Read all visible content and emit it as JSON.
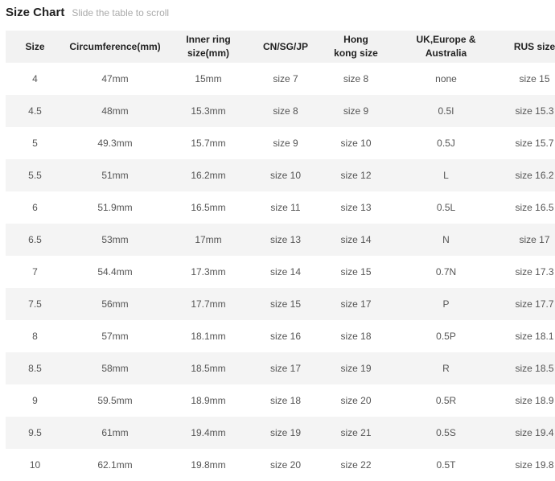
{
  "title": "Size Chart",
  "subtitle": "Slide the table to scroll",
  "headers": [
    "Size",
    "Circumference(mm)",
    "Inner ring size(mm)",
    "CN/SG/JP",
    "Hong kong size",
    "UK,Europe & Australia",
    "RUS size"
  ],
  "rows": [
    [
      "4",
      "47mm",
      "15mm",
      "size 7",
      "size 8",
      "none",
      "size 15"
    ],
    [
      "4.5",
      "48mm",
      "15.3mm",
      "size 8",
      "size 9",
      "0.5I",
      "size 15.3"
    ],
    [
      "5",
      "49.3mm",
      "15.7mm",
      "size 9",
      "size 10",
      "0.5J",
      "size 15.7"
    ],
    [
      "5.5",
      "51mm",
      "16.2mm",
      "size 10",
      "size 12",
      "L",
      "size 16.2"
    ],
    [
      "6",
      "51.9mm",
      "16.5mm",
      "size 11",
      "size 13",
      "0.5L",
      "size 16.5"
    ],
    [
      "6.5",
      "53mm",
      "17mm",
      "size 13",
      "size 14",
      "N",
      "size 17"
    ],
    [
      "7",
      "54.4mm",
      "17.3mm",
      "size 14",
      "size 15",
      "0.7N",
      "size 17.3"
    ],
    [
      "7.5",
      "56mm",
      "17.7mm",
      "size 15",
      "size 17",
      "P",
      "size 17.7"
    ],
    [
      "8",
      "57mm",
      "18.1mm",
      "size 16",
      "size 18",
      "0.5P",
      "size 18.1"
    ],
    [
      "8.5",
      "58mm",
      "18.5mm",
      "size 17",
      "size 19",
      "R",
      "size 18.5"
    ],
    [
      "9",
      "59.5mm",
      "18.9mm",
      "size 18",
      "size 20",
      "0.5R",
      "size 18.9"
    ],
    [
      "9.5",
      "61mm",
      "19.4mm",
      "size 19",
      "size 21",
      "0.5S",
      "size 19.4"
    ],
    [
      "10",
      "62.1mm",
      "19.8mm",
      "size 20",
      "size 22",
      "0.5T",
      "size 19.8"
    ]
  ]
}
